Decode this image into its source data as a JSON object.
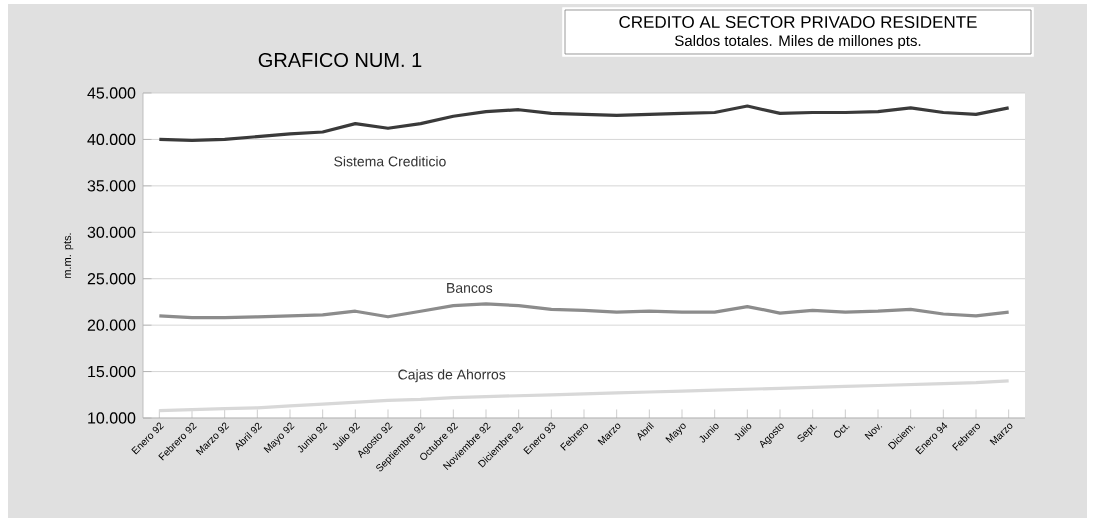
{
  "chart_data": {
    "type": "line",
    "title": "CREDITO AL SECTOR PRIVADO RESIDENTE",
    "subtitle": "Saldos totales. Miles de millones pts.",
    "annotations": [
      "GRAFICO NUM. 1"
    ],
    "ylabel": "m.m. pts.",
    "categories": [
      "Enero 92",
      "Febrero 92",
      "Marzo 92",
      "Abril 92",
      "Mayo 92",
      "Junio 92",
      "Julio 92",
      "Agosto 92",
      "Septiembre 92",
      "Octubre 92",
      "Noviembre 92",
      "Diciembre 92",
      "Enero 93",
      "Febrero",
      "Marzo",
      "Abril",
      "Mayo",
      "Junio",
      "Julio",
      "Agosto",
      "Sept.",
      "Oct.",
      "Nov.",
      "Diciem.",
      "Enero 94",
      "Febrero",
      "Marzo"
    ],
    "series": [
      {
        "name": "Sistema Crediticio",
        "color": "#3a3a3a",
        "values": [
          40000,
          39900,
          40000,
          40300,
          40600,
          40800,
          41700,
          41200,
          41700,
          42500,
          43000,
          43200,
          42800,
          42700,
          42600,
          42700,
          42800,
          42900,
          43600,
          42800,
          42900,
          42900,
          43000,
          43400,
          42900,
          42700,
          43400
        ]
      },
      {
        "name": "Bancos",
        "color": "#8c8c8c",
        "values": [
          21000,
          20800,
          20800,
          20900,
          21000,
          21100,
          21500,
          20900,
          21500,
          22100,
          22300,
          22100,
          21700,
          21600,
          21400,
          21500,
          21400,
          21400,
          22000,
          21300,
          21600,
          21400,
          21500,
          21700,
          21200,
          21000,
          21400
        ]
      },
      {
        "name": "Cajas de Ahorros",
        "color": "#d8d8d8",
        "values": [
          10800,
          10900,
          11000,
          11100,
          11300,
          11500,
          11700,
          11900,
          12000,
          12200,
          12300,
          12400,
          12500,
          12600,
          12700,
          12800,
          12900,
          13000,
          13100,
          13200,
          13300,
          13400,
          13500,
          13600,
          13700,
          13800,
          14000
        ]
      }
    ],
    "ylim": [
      10000,
      45000
    ],
    "yticks": [
      {
        "value": 10000,
        "label": "10.000"
      },
      {
        "value": 15000,
        "label": "15.000"
      },
      {
        "value": 20000,
        "label": "20.000"
      },
      {
        "value": 25000,
        "label": "25.000"
      },
      {
        "value": 30000,
        "label": "30.000"
      },
      {
        "value": 35000,
        "label": "35.000"
      },
      {
        "value": 40000,
        "label": "40.000"
      },
      {
        "value": 45000,
        "label": "45.000"
      }
    ],
    "grid": "y",
    "legend": false,
    "marker": "none",
    "line_style": "solid"
  }
}
